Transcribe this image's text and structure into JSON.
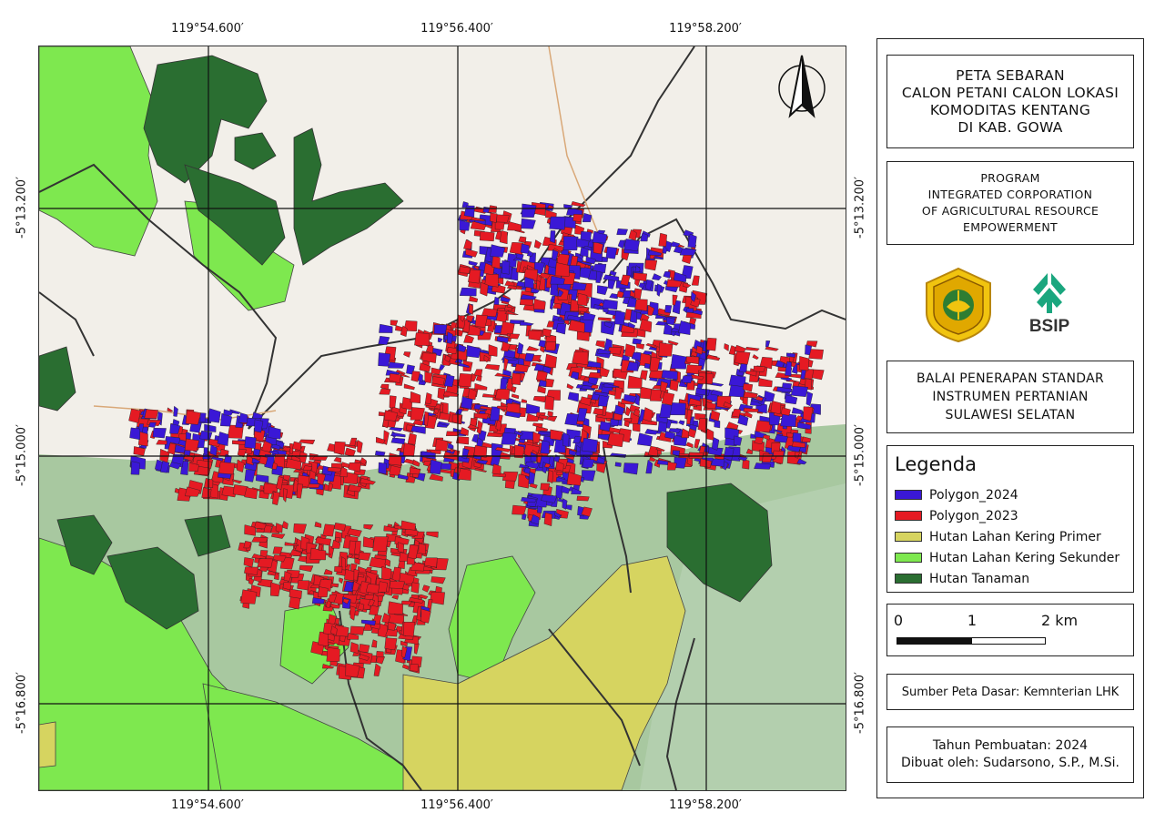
{
  "map": {
    "coords": {
      "top": [
        "119°54.600′",
        "119°56.400′",
        "119°58.200′"
      ],
      "bottom": [
        "119°54.600′",
        "119°56.400′",
        "119°58.200′"
      ],
      "left": [
        "-5°13.200′",
        "-5°15.000′",
        "-5°16.800′"
      ],
      "right": [
        "-5°13.200′",
        "-5°15.000′",
        "-5°16.800′"
      ]
    },
    "north_arrow_icon": "north-arrow-icon"
  },
  "colors": {
    "polygon_2024": "#3a18d6",
    "polygon_2023": "#e51a23",
    "hutan_primer": "#d6d460",
    "hutan_sekunder": "#7ee84f",
    "hutan_tanaman": "#2a6e31",
    "base_land": "#f2efe9",
    "forest_area": "#a8c8a0"
  },
  "panel": {
    "title": [
      "PETA SEBARAN",
      "CALON PETANI CALON LOKASI",
      "KOMODITAS KENTANG",
      "DI KAB. GOWA"
    ],
    "program": [
      "PROGRAM",
      "INTEGRATED CORPORATION",
      "OF AGRICULTURAL RESOURCE",
      "EMPOWERMENT"
    ],
    "logos": {
      "left_icon": "kementan-emblem-icon",
      "right_icon": "bsip-logo-icon",
      "right_text": "BSIP"
    },
    "institution": [
      "BALAI PENERAPAN STANDAR",
      "INSTRUMEN PERTANIAN",
      "SULAWESI SELATAN"
    ],
    "legend": {
      "title": "Legenda",
      "items": [
        {
          "label": "Polygon_2024",
          "color": "#3a18d6"
        },
        {
          "label": "Polygon_2023",
          "color": "#e51a23"
        },
        {
          "label": "Hutan Lahan Kering Primer",
          "color": "#d6d460"
        },
        {
          "label": "Hutan Lahan Kering Sekunder",
          "color": "#7ee84f"
        },
        {
          "label": "Hutan Tanaman",
          "color": "#2a6e31"
        }
      ]
    },
    "scale": {
      "labels": [
        "0",
        "1",
        "2 km"
      ]
    },
    "source": "Sumber Peta Dasar: Kemnterian LHK",
    "year": "Tahun Pembuatan: 2024",
    "author": "Dibuat oleh: Sudarsono, S.P., M.Si."
  }
}
